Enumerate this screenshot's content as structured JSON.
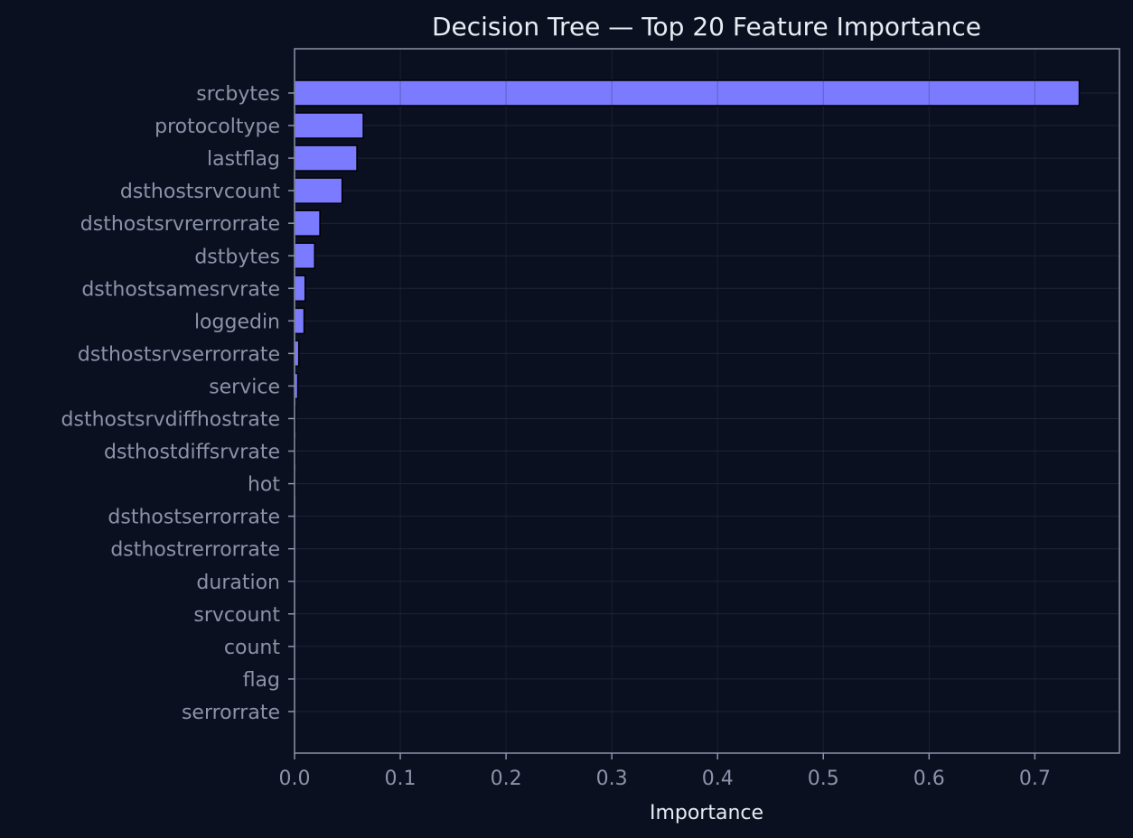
{
  "chart_data": {
    "type": "bar",
    "orientation": "horizontal",
    "title": "Decision Tree — Top 20 Feature Importance",
    "xlabel": "Importance",
    "ylabel": "",
    "xlim": [
      0,
      0.78
    ],
    "xticks": [
      0.0,
      0.1,
      0.2,
      0.3,
      0.4,
      0.5,
      0.6,
      0.7
    ],
    "xtick_labels": [
      "0.0",
      "0.1",
      "0.2",
      "0.3",
      "0.4",
      "0.5",
      "0.6",
      "0.7"
    ],
    "grid": true,
    "bar_color": "#7b7bff",
    "bar_edge_color": "#000000",
    "categories": [
      "srcbytes",
      "protocoltype",
      "lastflag",
      "dsthostsrvcount",
      "dsthostsrvrerrorrate",
      "dstbytes",
      "dsthostsamesrvrate",
      "loggedin",
      "dsthostsrvserrorrate",
      "service",
      "dsthostsrvdiffhostrate",
      "dsthostdiffsrvrate",
      "hot",
      "dsthostserrorrate",
      "dsthostrerrorrate",
      "duration",
      "srvcount",
      "count",
      "flag",
      "serrorrate"
    ],
    "values": [
      0.742,
      0.065,
      0.059,
      0.045,
      0.024,
      0.019,
      0.01,
      0.009,
      0.004,
      0.003,
      0.001,
      0.0008,
      0.0006,
      0.0005,
      0.0004,
      0.0003,
      0.0002,
      0.0002,
      0.0001,
      0.0001
    ]
  },
  "colors": {
    "background": "#0b1020",
    "spine": "#8b93a8",
    "grid": "#2a3246",
    "text": "#e8ecf4",
    "tick_text": "#8b93a8"
  }
}
